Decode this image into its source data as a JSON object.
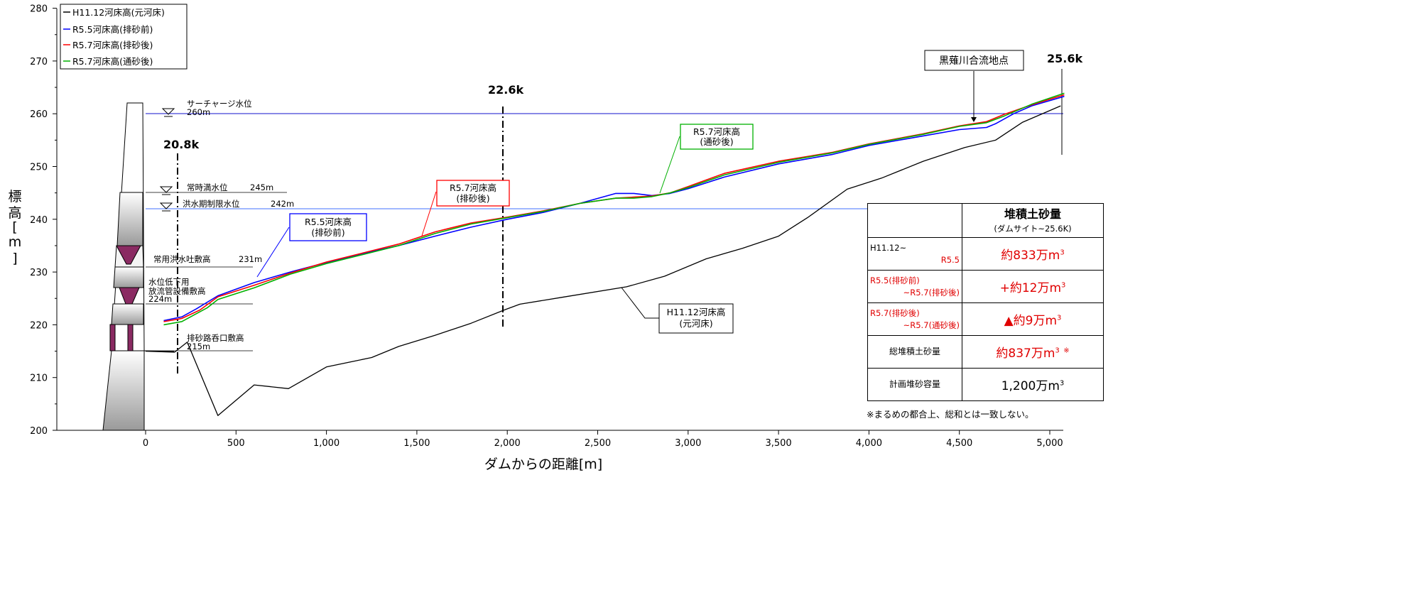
{
  "chart_data": {
    "type": "line",
    "xlabel": "ダムからの距離[m]",
    "ylabel": "標高[m]",
    "xlim": [
      -500,
      5100
    ],
    "ylim": [
      200,
      280
    ],
    "x_ticks": [
      0,
      500,
      1000,
      1500,
      2000,
      2500,
      3000,
      3500,
      4000,
      4500,
      5000
    ],
    "x_tick_labels": [
      "0",
      "500",
      "1,000",
      "1,500",
      "2,000",
      "2,500",
      "3,000",
      "3,500",
      "4,000",
      "4,500",
      "5,000"
    ],
    "y_ticks": [
      200,
      210,
      220,
      230,
      240,
      250,
      260,
      270,
      280
    ],
    "y_tick_labels": [
      "200",
      "210",
      "220",
      "230",
      "240",
      "250",
      "260",
      "270",
      "280"
    ],
    "legend_position": "top-left",
    "series": [
      {
        "name": "H11.12河床高(元河床)",
        "color": "#000000",
        "x": [
          0,
          160,
          230,
          400,
          600,
          790,
          1000,
          1250,
          1400,
          1600,
          1800,
          1990,
          2070,
          2300,
          2660,
          2870,
          3100,
          3300,
          3500,
          3660,
          3880,
          4070,
          4300,
          4530,
          4700,
          4850,
          5060
        ],
        "y": [
          215.0,
          214.8,
          216.7,
          202.8,
          208.6,
          207.9,
          212.0,
          213.8,
          215.9,
          218.0,
          220.3,
          222.9,
          223.9,
          225.2,
          227.2,
          229.2,
          232.5,
          234.5,
          236.8,
          240.3,
          245.7,
          247.8,
          251.0,
          253.6,
          255.0,
          258.4,
          261.5
        ]
      },
      {
        "name": "R5.5河床高(排砂前)",
        "color": "#0000ff",
        "x": [
          100,
          200,
          280,
          400,
          600,
          800,
          1000,
          1200,
          1400,
          1600,
          1800,
          2000,
          2200,
          2400,
          2600,
          2700,
          2800,
          2900,
          3000,
          3200,
          3500,
          3800,
          4000,
          4300,
          4500,
          4650,
          4700,
          4800,
          4900,
          5080
        ],
        "y": [
          220.8,
          221.5,
          223.0,
          225.5,
          228.0,
          230.0,
          231.8,
          233.5,
          235.0,
          236.8,
          238.5,
          240.0,
          241.3,
          243.0,
          244.9,
          244.9,
          244.5,
          244.9,
          245.8,
          248.0,
          250.5,
          252.3,
          254.0,
          255.8,
          257.0,
          257.4,
          258.1,
          260.0,
          261.5,
          263.3
        ]
      },
      {
        "name": "R5.7河床高(排砂後)",
        "color": "#ff0000",
        "x": [
          100,
          200,
          300,
          400,
          600,
          800,
          1000,
          1200,
          1400,
          1600,
          1800,
          2000,
          2200,
          2400,
          2600,
          2700,
          2800,
          2900,
          3000,
          3200,
          3500,
          3800,
          4000,
          4300,
          4500,
          4650,
          4750,
          4900,
          5080
        ],
        "y": [
          220.6,
          221.2,
          222.8,
          225.3,
          227.5,
          229.8,
          231.9,
          233.6,
          235.3,
          237.6,
          239.3,
          240.4,
          241.6,
          243.0,
          244.0,
          244.2,
          244.4,
          245.0,
          246.2,
          248.7,
          251.0,
          252.7,
          254.3,
          256.2,
          257.7,
          258.5,
          259.9,
          261.7,
          263.6
        ]
      },
      {
        "name": "R5.7河床高(通砂後)",
        "color": "#00b000",
        "x": [
          100,
          200,
          340,
          400,
          600,
          800,
          1000,
          1200,
          1400,
          1600,
          1800,
          2000,
          2200,
          2400,
          2600,
          2700,
          2800,
          2900,
          3000,
          3200,
          3500,
          3800,
          4000,
          4300,
          4500,
          4650,
          4750,
          4900,
          5080
        ],
        "y": [
          220.0,
          220.6,
          223.2,
          224.8,
          227.0,
          229.6,
          231.6,
          233.3,
          235.0,
          237.3,
          239.1,
          240.3,
          241.5,
          243.0,
          244.0,
          244.0,
          244.3,
          245.0,
          246.0,
          248.4,
          250.8,
          252.6,
          254.2,
          256.1,
          257.6,
          258.3,
          259.6,
          261.8,
          263.9
        ]
      }
    ],
    "reference_lines": [
      {
        "label": "サーチャージ水位",
        "value": "260m",
        "y": 260,
        "color": "#1010cc"
      },
      {
        "label": "常時満水位",
        "value": "245m",
        "y": 245
      },
      {
        "label": "洪水期制限水位",
        "value": "242m",
        "y": 242,
        "color": "#4070ff"
      },
      {
        "label": "常用洪水吐敷高",
        "value": "231m",
        "y": 231
      },
      {
        "label_line1": "水位低下用",
        "label_line2": "放流管設備敷高",
        "value": "224m",
        "y": 224
      },
      {
        "label": "排砂路呑口敷高",
        "value": "215m",
        "y": 215
      }
    ],
    "sections": [
      {
        "label": "20.8k",
        "x": 185
      },
      {
        "label": "22.6k",
        "x": 1980
      },
      {
        "label": "25.6k",
        "x": 5080
      }
    ],
    "annotations": {
      "r55_callout": [
        "R5.5河床高",
        "(排砂前)"
      ],
      "r57_callout": [
        "R5.7河床高",
        "(排砂後)"
      ],
      "r57t_callout": [
        "R5.7河床高",
        "(通砂後)"
      ],
      "h11_callout": [
        "H11.12河床高",
        "(元河床)"
      ],
      "confluence": "黒薙川合流地点"
    }
  },
  "table": {
    "header_title": "堆積土砂量",
    "header_sub": "(ダムサイト~25.6K)",
    "rows": [
      {
        "label1": "H11.12~",
        "label2": "R5.5",
        "value_prefix": "約833万m",
        "sup": "3",
        "note": ""
      },
      {
        "label1": "R5.5(排砂前)",
        "label2": "~R5.7(排砂後)",
        "value_prefix": "+約12万m",
        "sup": "3",
        "note": ""
      },
      {
        "label1": "R5.7(排砂後)",
        "label2": "~R5.7(通砂後)",
        "value_prefix": "▲約9万m",
        "sup": "3",
        "note": ""
      },
      {
        "label": "総堆積土砂量",
        "value_prefix": "約837万m",
        "sup": "3",
        "note": "※"
      },
      {
        "label": "計画堆砂容量",
        "value_prefix": "1,200万m",
        "sup": "3",
        "note": ""
      }
    ],
    "footnote": "※まるめの都合上、総和とは一致しない。"
  }
}
